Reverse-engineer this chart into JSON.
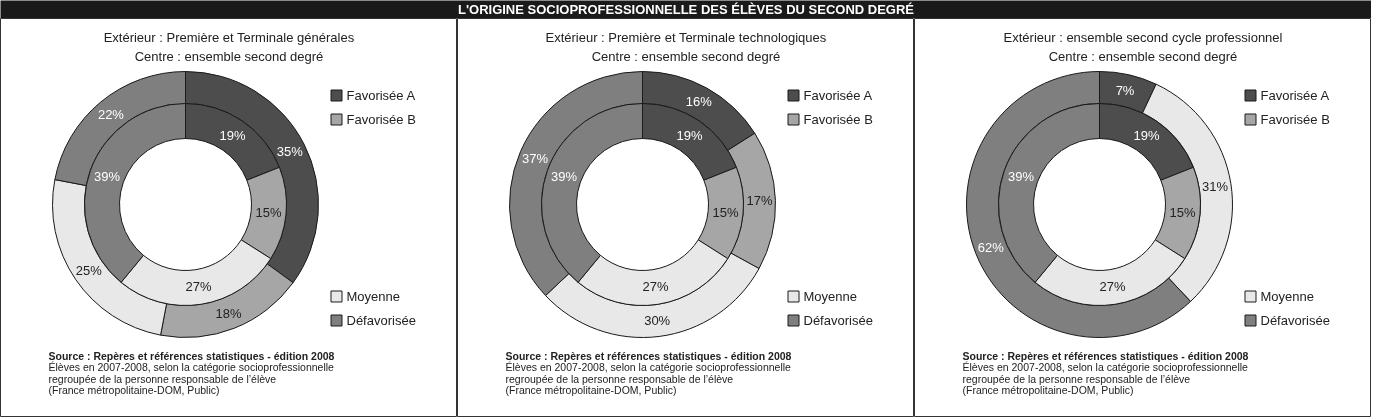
{
  "chart_data": [
    {
      "type": "other",
      "title": "L'ORIGINE SOCIOPROFESSIONNELLE DES ÉLÈVES DU SECOND DEGRÉ"
    },
    {
      "type": "donut",
      "title": "Extérieur : Première et Terminale générales",
      "subtitle": "Centre : ensemble second degré",
      "categories": [
        "Favorisée A",
        "Favorisée B",
        "Moyenne",
        "Défavorisée"
      ],
      "colors": [
        "#4d4d4d",
        "#a6a6a6",
        "#e8e8e8",
        "#7f7f7f"
      ],
      "series": [
        {
          "values": [
            35,
            18,
            25,
            22
          ],
          "value_labels": [
            "35%",
            "18%",
            "25%",
            "22%"
          ]
        },
        {
          "values": [
            19,
            15,
            27,
            39
          ],
          "value_labels": [
            "19%",
            "15%",
            "27%",
            "39%"
          ]
        }
      ],
      "legend": "right",
      "annotations": [
        "Source : Repères et références statistiques - édition 2008",
        "Élèves en 2007-2008, selon la catégorie socioprofessionnelle",
        "regroupée de la personne responsable de l’élève",
        "(France métropolitaine-DOM, Public)"
      ]
    },
    {
      "type": "donut",
      "title": "Extérieur : Première et Terminale technologiques",
      "subtitle": "Centre : ensemble second degré",
      "categories": [
        "Favorisée A",
        "Favorisée B",
        "Moyenne",
        "Défavorisée"
      ],
      "colors": [
        "#4d4d4d",
        "#a6a6a6",
        "#e8e8e8",
        "#7f7f7f"
      ],
      "series": [
        {
          "values": [
            16,
            17,
            30,
            37
          ],
          "value_labels": [
            "16%",
            "17%",
            "30%",
            "37%"
          ]
        },
        {
          "values": [
            19,
            15,
            27,
            39
          ],
          "value_labels": [
            "19%",
            "15%",
            "27%",
            "39%"
          ]
        }
      ],
      "legend": "right",
      "annotations": [
        "Source : Repères et références statistiques - édition 2008",
        "Élèves en 2007-2008, selon la catégorie socioprofessionnelle",
        "regroupée de la personne responsable de l’élève",
        "(France métropolitaine-DOM, Public)"
      ]
    },
    {
      "type": "donut",
      "title": "Extérieur : ensemble second cycle professionnel",
      "subtitle": "Centre : ensemble second degré",
      "categories": [
        "Favorisée A",
        "Favorisée B",
        "Moyenne",
        "Défavorisée"
      ],
      "colors": [
        "#4d4d4d",
        "#a6a6a6",
        "#e8e8e8",
        "#7f7f7f"
      ],
      "series": [
        {
          "values": [
            7,
            null,
            31,
            62
          ],
          "value_labels": [
            "7%",
            null,
            "31%",
            "62%"
          ]
        },
        {
          "values": [
            19,
            15,
            27,
            39
          ],
          "value_labels": [
            "19%",
            "15%",
            "27%",
            "39%"
          ]
        }
      ],
      "legend": "right",
      "annotations": [
        "Source : Repères et références statistiques - édition 2008",
        "Élèves en 2007-2008, selon la catégorie socioprofessionnelle",
        "regroupée de la personne responsable de l’élève",
        "(France métropolitaine-DOM, Public)"
      ]
    }
  ]
}
